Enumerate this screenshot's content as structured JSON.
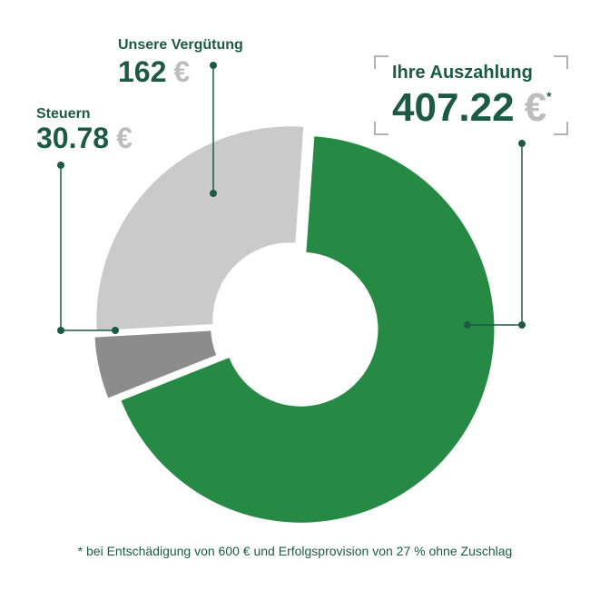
{
  "chart_data": {
    "type": "pie",
    "donut": true,
    "categories": [
      "Ihre Auszahlung",
      "Steuern",
      "Unsere Vergütung"
    ],
    "values": [
      407.22,
      30.78,
      162
    ],
    "colors": [
      "#268a45",
      "#8c8c8c",
      "#c9cac9"
    ],
    "unit": "€",
    "note_marker": "*",
    "footnote": "* bei Entschädigung von 600 € und Erfolgsprovision von 27 % ohne Zuschlag"
  }
}
